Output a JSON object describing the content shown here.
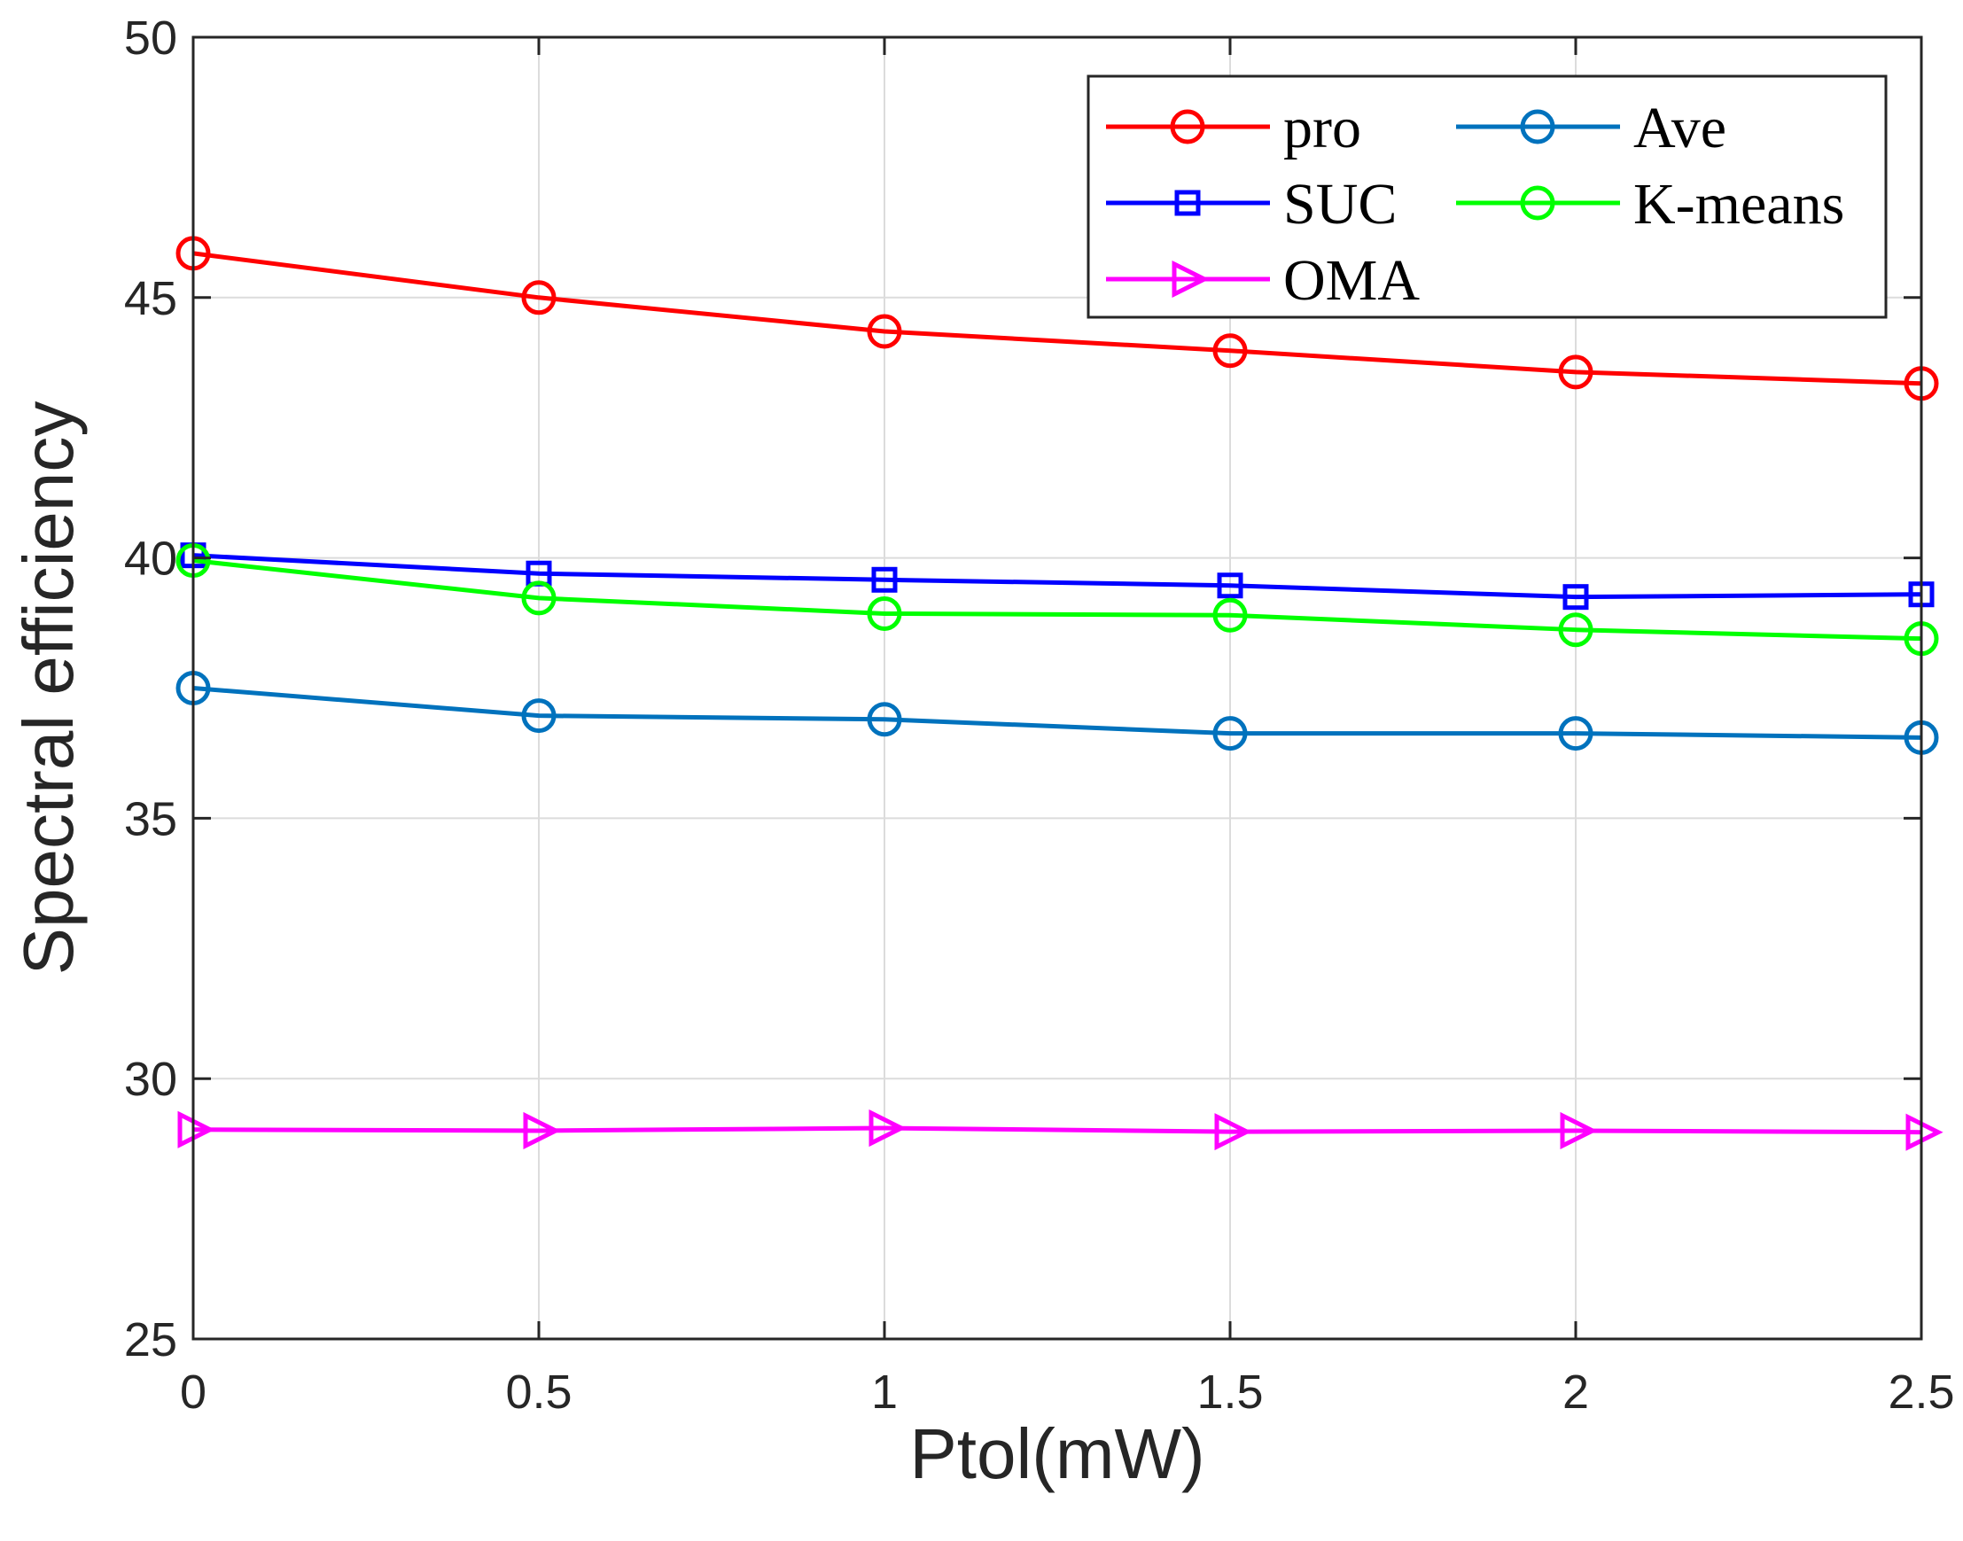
{
  "chart_data": {
    "type": "line",
    "title": "",
    "xlabel": "Ptol(mW)",
    "ylabel": "Spectral efficiency",
    "x": [
      0,
      0.5,
      1,
      1.5,
      2,
      2.5
    ],
    "xlim": [
      0,
      2.5
    ],
    "ylim": [
      25,
      50
    ],
    "xticks": [
      0,
      0.5,
      1,
      1.5,
      2,
      2.5
    ],
    "xtick_labels": [
      "0",
      "0.5",
      "1",
      "1.5",
      "2",
      "2.5"
    ],
    "yticks": [
      25,
      30,
      35,
      40,
      45,
      50
    ],
    "ytick_labels": [
      "25",
      "30",
      "35",
      "40",
      "45",
      "50"
    ],
    "grid": true,
    "legend_position": "top-right",
    "series": [
      {
        "name": "pro",
        "color": "#ff0000",
        "marker": "circle",
        "values": [
          45.85,
          45.0,
          44.35,
          43.98,
          43.57,
          43.35
        ]
      },
      {
        "name": "Ave",
        "color": "#0072bd",
        "marker": "circle",
        "values": [
          37.5,
          36.97,
          36.9,
          36.63,
          36.63,
          36.55
        ]
      },
      {
        "name": "SUC",
        "color": "#0000ff",
        "marker": "square",
        "values": [
          40.05,
          39.7,
          39.58,
          39.47,
          39.25,
          39.3
        ]
      },
      {
        "name": "K-means",
        "color": "#00ff00",
        "marker": "circle",
        "values": [
          39.95,
          39.23,
          38.93,
          38.9,
          38.62,
          38.45
        ]
      },
      {
        "name": "OMA",
        "color": "#ff00ff",
        "marker": "triangle-right",
        "values": [
          29.02,
          29.0,
          29.05,
          28.98,
          29.0,
          28.97
        ]
      }
    ]
  }
}
